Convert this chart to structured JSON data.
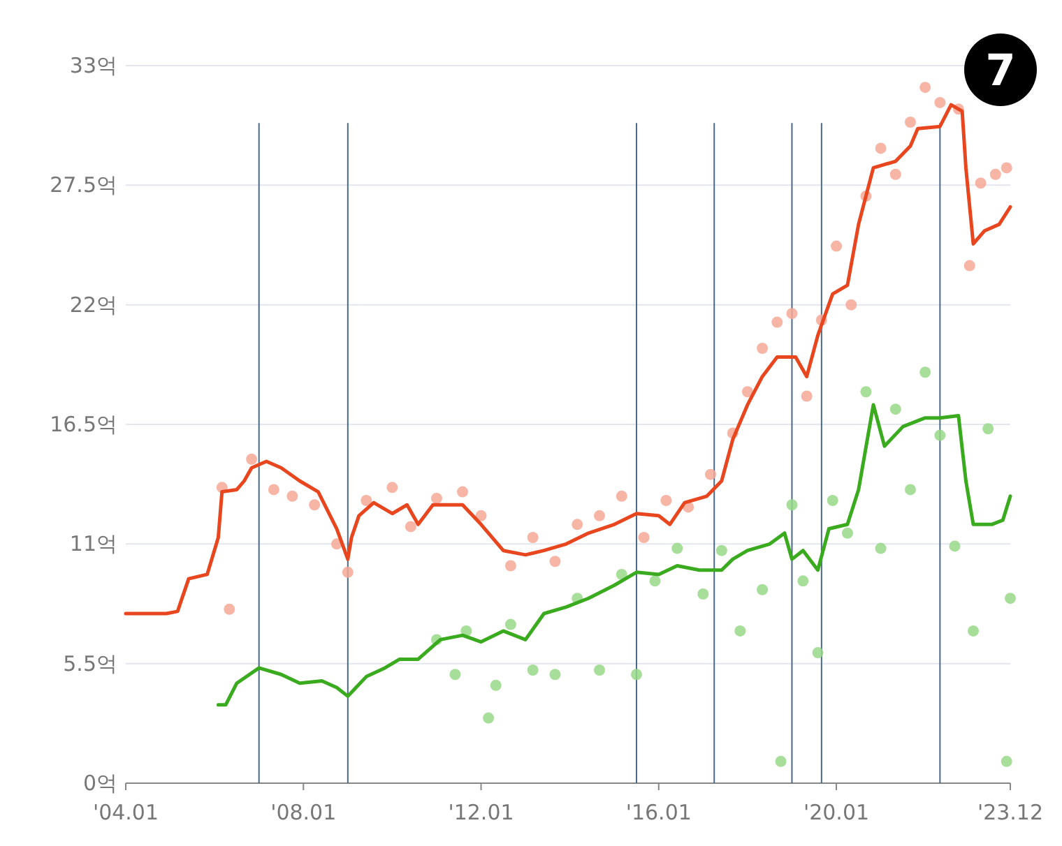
{
  "chart_data": {
    "type": "line",
    "xlim": [
      "2004-01",
      "2023-12"
    ],
    "xticks": [
      {
        "value": "2004-01",
        "label": "'04.01"
      },
      {
        "value": "2008-01",
        "label": "'08.01"
      },
      {
        "value": "2012-01",
        "label": "'12.01"
      },
      {
        "value": "2016-01",
        "label": "'16.01"
      },
      {
        "value": "2020-01",
        "label": "'20.01"
      },
      {
        "value": "2023-12",
        "label": "'23.12"
      }
    ],
    "ylim": [
      0,
      33
    ],
    "yticks": [
      {
        "value": 0,
        "label": "0억"
      },
      {
        "value": 5.5,
        "label": "5.5억"
      },
      {
        "value": 11,
        "label": "11억"
      },
      {
        "value": 16.5,
        "label": "16.5억"
      },
      {
        "value": 22,
        "label": "22억"
      },
      {
        "value": 27.5,
        "label": "27.5억"
      },
      {
        "value": 33,
        "label": "33억"
      }
    ],
    "grid": "y",
    "annotations": [
      "7"
    ],
    "ref_lines": [
      {
        "axis": "x",
        "value": "2007-01",
        "color": "#4a6a8a"
      },
      {
        "axis": "x",
        "value": "2009-01",
        "color": "#4a6a8a"
      },
      {
        "axis": "x",
        "value": "2015-07",
        "color": "#4a6a8a"
      },
      {
        "axis": "x",
        "value": "2017-04",
        "color": "#4a6a8a"
      },
      {
        "axis": "x",
        "value": "2019-01",
        "color": "#4a6a8a"
      },
      {
        "axis": "x",
        "value": "2019-09",
        "color": "#4a6a8a"
      },
      {
        "axis": "x",
        "value": "2022-05",
        "color": "#4a6a8a"
      }
    ],
    "series": [
      {
        "type": "scatter",
        "color": "#f6a896",
        "x": [
          "2006-03",
          "2006-05",
          "2006-11",
          "2007-05",
          "2007-10",
          "2008-04",
          "2008-10",
          "2009-01",
          "2009-06",
          "2010-01",
          "2010-06",
          "2011-01",
          "2011-08",
          "2012-01",
          "2012-09",
          "2013-03",
          "2013-09",
          "2014-03",
          "2014-09",
          "2015-03",
          "2015-09",
          "2016-03",
          "2016-09",
          "2017-03",
          "2017-09",
          "2018-01",
          "2018-05",
          "2018-09",
          "2019-01",
          "2019-05",
          "2019-09",
          "2020-01",
          "2020-05",
          "2020-09",
          "2021-01",
          "2021-05",
          "2021-09",
          "2022-01",
          "2022-05",
          "2022-10",
          "2023-01",
          "2023-04",
          "2023-08",
          "2023-11"
        ],
        "values": [
          13.6,
          8.0,
          14.9,
          13.5,
          13.2,
          12.8,
          11.0,
          9.7,
          13.0,
          13.6,
          11.8,
          13.1,
          13.4,
          12.3,
          10.0,
          11.3,
          10.2,
          11.9,
          12.3,
          13.2,
          11.3,
          13.0,
          12.7,
          14.2,
          16.1,
          18.0,
          20.0,
          21.2,
          21.6,
          17.8,
          21.3,
          24.7,
          22.0,
          27.0,
          29.2,
          28.0,
          30.4,
          32.0,
          31.3,
          31.0,
          23.8,
          27.6,
          28.0,
          28.3
        ]
      },
      {
        "type": "scatter",
        "color": "#98d888",
        "x": [
          "2011-01",
          "2011-06",
          "2011-09",
          "2012-03",
          "2012-05",
          "2012-09",
          "2013-03",
          "2013-09",
          "2014-03",
          "2014-09",
          "2015-03",
          "2015-07",
          "2015-12",
          "2016-06",
          "2017-01",
          "2017-06",
          "2017-11",
          "2018-05",
          "2018-10",
          "2019-01",
          "2019-04",
          "2019-08",
          "2019-12",
          "2020-04",
          "2020-09",
          "2021-01",
          "2021-05",
          "2021-09",
          "2022-01",
          "2022-05",
          "2022-09",
          "2023-02",
          "2023-06",
          "2023-11",
          "2023-12"
        ],
        "values": [
          6.6,
          5.0,
          7.0,
          3.0,
          4.5,
          7.3,
          5.2,
          5.0,
          8.5,
          5.2,
          9.6,
          5.0,
          9.3,
          10.8,
          8.7,
          10.7,
          7.0,
          8.9,
          1.0,
          12.8,
          9.3,
          6.0,
          13.0,
          11.5,
          18.0,
          10.8,
          17.2,
          13.5,
          18.9,
          16.0,
          10.9,
          7.0,
          16.3,
          1.0,
          8.5
        ]
      },
      {
        "color": "#e8461e",
        "x": [
          "2004-01",
          "2004-12",
          "2005-03",
          "2005-06",
          "2005-11",
          "2006-02",
          "2006-03",
          "2006-07",
          "2006-09",
          "2006-11",
          "2007-03",
          "2007-07",
          "2007-12",
          "2008-05",
          "2008-10",
          "2009-01",
          "2009-02",
          "2009-04",
          "2009-08",
          "2010-01",
          "2010-05",
          "2010-08",
          "2010-12",
          "2011-08",
          "2012-01",
          "2012-07",
          "2013-01",
          "2013-06",
          "2013-12",
          "2014-06",
          "2015-01",
          "2015-07",
          "2016-01",
          "2016-04",
          "2016-08",
          "2017-02",
          "2017-06",
          "2017-09",
          "2018-01",
          "2018-05",
          "2018-09",
          "2019-02",
          "2019-05",
          "2019-08",
          "2019-12",
          "2020-04",
          "2020-07",
          "2020-11",
          "2021-05",
          "2021-09",
          "2021-11",
          "2022-05",
          "2022-08",
          "2022-11",
          "2022-12",
          "2023-02",
          "2023-05",
          "2023-09",
          "2023-12"
        ],
        "values": [
          7.8,
          7.8,
          7.9,
          9.4,
          9.6,
          11.3,
          13.4,
          13.5,
          13.9,
          14.5,
          14.8,
          14.5,
          13.9,
          13.4,
          11.7,
          10.3,
          11.3,
          12.3,
          12.9,
          12.4,
          12.8,
          11.9,
          12.8,
          12.8,
          11.9,
          10.7,
          10.5,
          10.7,
          11.0,
          11.5,
          11.9,
          12.4,
          12.3,
          11.9,
          12.9,
          13.2,
          13.9,
          15.8,
          17.4,
          18.7,
          19.6,
          19.6,
          18.7,
          20.6,
          22.5,
          22.9,
          25.7,
          28.3,
          28.6,
          29.3,
          30.1,
          30.2,
          31.2,
          30.9,
          28.3,
          24.8,
          25.4,
          25.7,
          26.5
        ]
      },
      {
        "color": "#3aaa1e",
        "x": [
          "2006-02",
          "2006-04",
          "2006-07",
          "2007-01",
          "2007-07",
          "2007-12",
          "2008-06",
          "2008-10",
          "2009-01",
          "2009-06",
          "2009-11",
          "2010-03",
          "2010-08",
          "2011-02",
          "2011-08",
          "2012-01",
          "2012-07",
          "2013-01",
          "2013-06",
          "2013-12",
          "2014-06",
          "2015-01",
          "2015-07",
          "2016-01",
          "2016-06",
          "2016-12",
          "2017-06",
          "2017-09",
          "2018-01",
          "2018-07",
          "2018-11",
          "2019-01",
          "2019-04",
          "2019-08",
          "2019-11",
          "2020-04",
          "2020-07",
          "2020-11",
          "2021-02",
          "2021-07",
          "2022-01",
          "2022-05",
          "2022-10",
          "2022-12",
          "2023-02",
          "2023-07",
          "2023-10",
          "2023-12"
        ],
        "values": [
          3.6,
          3.6,
          4.6,
          5.3,
          5.0,
          4.6,
          4.7,
          4.4,
          4.0,
          4.9,
          5.3,
          5.7,
          5.7,
          6.6,
          6.8,
          6.5,
          7.0,
          6.6,
          7.8,
          8.1,
          8.5,
          9.1,
          9.7,
          9.6,
          10.0,
          9.8,
          9.8,
          10.3,
          10.7,
          11.0,
          11.5,
          10.3,
          10.7,
          9.8,
          11.7,
          11.9,
          13.5,
          17.4,
          15.5,
          16.4,
          16.8,
          16.8,
          16.9,
          13.9,
          11.9,
          11.9,
          12.1,
          13.2
        ]
      }
    ]
  }
}
